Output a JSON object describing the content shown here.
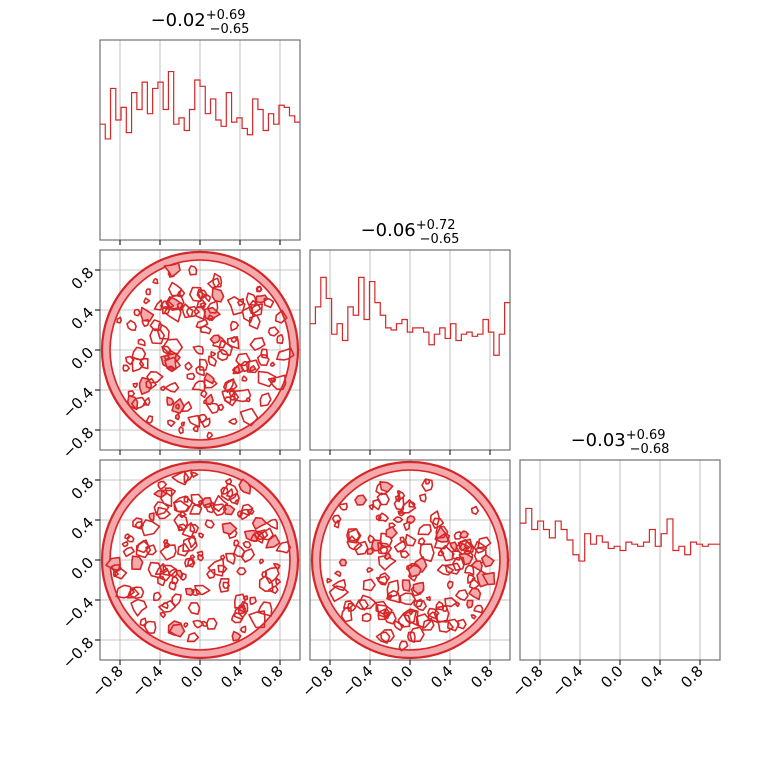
{
  "chart_data": {
    "type": "corner",
    "colors": {
      "line": "#d62728",
      "fill": "#f4a9ad",
      "grid": "#b0b0b0",
      "frame": "#555555"
    },
    "axis_range": [
      -1.0,
      1.0
    ],
    "ticks": [
      -0.8,
      -0.4,
      0.0,
      0.4,
      0.8
    ],
    "tick_labels": [
      "−0.8",
      "−0.4",
      "0.0",
      "0.4",
      "0.8"
    ],
    "parameters": [
      {
        "median": "−0.02",
        "plus": "+0.69",
        "minus": "−0.65",
        "hist_values": [
          0.55,
          0.48,
          0.72,
          0.57,
          0.63,
          0.51,
          0.7,
          0.62,
          0.75,
          0.6,
          0.72,
          0.75,
          0.62,
          0.8,
          0.55,
          0.58,
          0.52,
          0.62,
          0.76,
          0.73,
          0.6,
          0.67,
          0.57,
          0.54,
          0.7,
          0.56,
          0.58,
          0.53,
          0.5,
          0.67,
          0.62,
          0.52,
          0.6,
          0.55,
          0.64,
          0.63,
          0.59,
          0.56
        ],
        "hist_ylim": [
          0,
          0.95
        ]
      },
      {
        "median": "−0.06",
        "plus": "+0.72",
        "minus": "−0.65",
        "hist_values": [
          0.6,
          0.68,
          0.82,
          0.72,
          0.55,
          0.6,
          0.52,
          0.68,
          0.64,
          0.82,
          0.62,
          0.8,
          0.7,
          0.64,
          0.58,
          0.57,
          0.6,
          0.62,
          0.56,
          0.58,
          0.58,
          0.56,
          0.5,
          0.55,
          0.58,
          0.53,
          0.6,
          0.52,
          0.55,
          0.56,
          0.54,
          0.55,
          0.62,
          0.56,
          0.45,
          0.55,
          0.7
        ],
        "hist_ylim": [
          0,
          0.95
        ]
      },
      {
        "median": "−0.03",
        "plus": "+0.69",
        "minus": "−0.68",
        "hist_values": [
          0.65,
          0.72,
          0.62,
          0.66,
          0.62,
          0.58,
          0.66,
          0.62,
          0.57,
          0.5,
          0.47,
          0.6,
          0.55,
          0.59,
          0.56,
          0.53,
          0.54,
          0.52,
          0.56,
          0.55,
          0.54,
          0.56,
          0.62,
          0.54,
          0.6,
          0.67,
          0.52,
          0.54,
          0.5,
          0.56,
          0.55,
          0.54,
          0.55,
          0.55
        ],
        "hist_ylim": [
          0,
          0.95
        ]
      }
    ],
    "contour_pairs": [
      {
        "row": 1,
        "col": 0
      },
      {
        "row": 2,
        "col": 0
      },
      {
        "row": 2,
        "col": 1
      }
    ]
  }
}
